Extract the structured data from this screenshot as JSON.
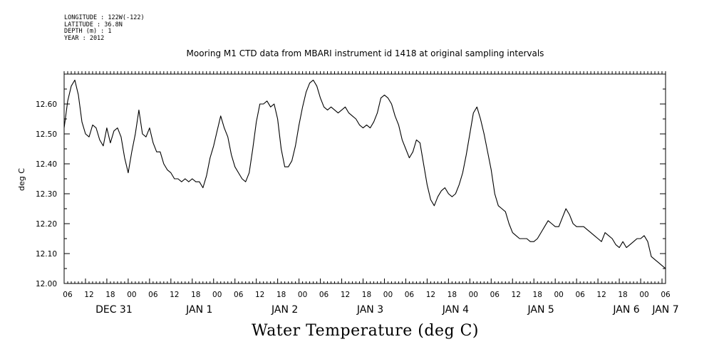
{
  "meta": {
    "longitude": "LONGITUDE : 122W(-122)",
    "latitude": "LATITUDE : 36.8N",
    "depth": "DEPTH (m) : 1",
    "year": "YEAR : 2012"
  },
  "chart_data": {
    "type": "line",
    "title": "Mooring M1 CTD data from MBARI instrument id 1418 at original sampling intervals",
    "ylabel": "deg C",
    "xlabel": "Water Temperature (deg C)",
    "ylim": [
      12.0,
      12.7
    ],
    "xlim_hours": [
      0,
      169
    ],
    "yticks": [
      "12.00",
      "12.10",
      "12.20",
      "12.30",
      "12.40",
      "12.50",
      "12.60"
    ],
    "xhour_labels": [
      "06",
      "12",
      "18",
      "00",
      "06",
      "12",
      "18",
      "00",
      "06",
      "12",
      "18",
      "00",
      "06",
      "12",
      "18",
      "00",
      "06",
      "12",
      "18",
      "00",
      "06",
      "12",
      "18",
      "00",
      "06",
      "12",
      "18",
      "00",
      "06"
    ],
    "xday_labels": [
      {
        "text": "DEC 31",
        "hour": 14
      },
      {
        "text": "JAN  1",
        "hour": 38
      },
      {
        "text": "JAN  2",
        "hour": 62
      },
      {
        "text": "JAN  3",
        "hour": 86
      },
      {
        "text": "JAN  4",
        "hour": 110
      },
      {
        "text": "JAN  5",
        "hour": 134
      },
      {
        "text": "JAN  6",
        "hour": 158
      },
      {
        "text": "JAN  7",
        "hour": 169
      }
    ],
    "series": [
      {
        "x": [
          0,
          1,
          2,
          3,
          4,
          5,
          6,
          7,
          8,
          9,
          10,
          11,
          12,
          13,
          14,
          15,
          16,
          17,
          18,
          19,
          20,
          21,
          22,
          23,
          24,
          25,
          26,
          27,
          28,
          29,
          30,
          31,
          32,
          33,
          34,
          35,
          36,
          37,
          38,
          39,
          40,
          41,
          42,
          43,
          44,
          45,
          46,
          47,
          48,
          49,
          50,
          51,
          52,
          53,
          54,
          55,
          56,
          57,
          58,
          59,
          60,
          61,
          62,
          63,
          64,
          65,
          66,
          67,
          68,
          69,
          70,
          71,
          72,
          73,
          74,
          75,
          76,
          77,
          78,
          79,
          80,
          81,
          82,
          83,
          84,
          85,
          86,
          87,
          88,
          89,
          90,
          91,
          92,
          93,
          94,
          95,
          96,
          97,
          98,
          99,
          100,
          101,
          102,
          103,
          104,
          105,
          106,
          107,
          108,
          109,
          110,
          111,
          112,
          113,
          114,
          115,
          116,
          117,
          118,
          119,
          120,
          121,
          122,
          123,
          124,
          125,
          126,
          127,
          128,
          129,
          130,
          131,
          132,
          133,
          134,
          135,
          136,
          137,
          138,
          139,
          140,
          141,
          142,
          143,
          144,
          145,
          146,
          147,
          148,
          149,
          150,
          151,
          152,
          153,
          154,
          155,
          156,
          157,
          158,
          159,
          160,
          161,
          162,
          163,
          164,
          165,
          166,
          167,
          168,
          169
        ],
        "y": [
          12.52,
          12.61,
          12.66,
          12.68,
          12.63,
          12.54,
          12.5,
          12.49,
          12.53,
          12.52,
          12.48,
          12.46,
          12.52,
          12.47,
          12.51,
          12.52,
          12.49,
          12.42,
          12.37,
          12.44,
          12.5,
          12.58,
          12.5,
          12.49,
          12.52,
          12.47,
          12.44,
          12.44,
          12.4,
          12.38,
          12.37,
          12.35,
          12.35,
          12.34,
          12.35,
          12.34,
          12.35,
          12.34,
          12.34,
          12.32,
          12.36,
          12.42,
          12.46,
          12.51,
          12.56,
          12.52,
          12.49,
          12.43,
          12.39,
          12.37,
          12.35,
          12.34,
          12.37,
          12.45,
          12.54,
          12.6,
          12.6,
          12.61,
          12.59,
          12.6,
          12.55,
          12.45,
          12.39,
          12.39,
          12.41,
          12.46,
          12.53,
          12.59,
          12.64,
          12.67,
          12.68,
          12.66,
          12.62,
          12.59,
          12.58,
          12.59,
          12.58,
          12.57,
          12.58,
          12.59,
          12.57,
          12.56,
          12.55,
          12.53,
          12.52,
          12.53,
          12.52,
          12.54,
          12.57,
          12.62,
          12.63,
          12.62,
          12.6,
          12.56,
          12.53,
          12.48,
          12.45,
          12.42,
          12.44,
          12.48,
          12.47,
          12.4,
          12.33,
          12.28,
          12.26,
          12.29,
          12.31,
          12.32,
          12.3,
          12.29,
          12.3,
          12.33,
          12.37,
          12.43,
          12.5,
          12.57,
          12.59,
          12.55,
          12.5,
          12.44,
          12.38,
          12.3,
          12.26,
          12.25,
          12.24,
          12.2,
          12.17,
          12.16,
          12.15,
          12.15,
          12.15,
          12.14,
          12.14,
          12.15,
          12.17,
          12.19,
          12.21,
          12.2,
          12.19,
          12.19,
          12.22,
          12.25,
          12.23,
          12.2,
          12.19,
          12.19,
          12.19,
          12.18,
          12.17,
          12.16,
          12.15,
          12.14,
          12.17,
          12.16,
          12.15,
          12.13,
          12.12,
          12.14,
          12.12,
          12.13,
          12.14,
          12.15,
          12.15,
          12.16,
          12.14,
          12.09,
          12.08,
          12.07,
          12.06,
          12.05
        ]
      }
    ]
  }
}
